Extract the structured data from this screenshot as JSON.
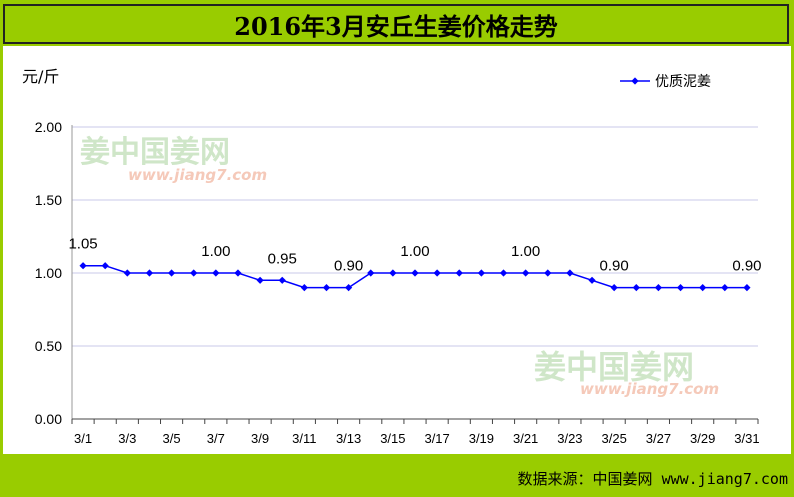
{
  "title": "2016年3月安丘生姜价格走势",
  "footer": "数据来源：中国姜网 www.jiang7.com",
  "watermark": {
    "logo": "姜中国姜网",
    "url": "www.jiang7.com"
  },
  "chart_data": {
    "type": "line",
    "ylabel": "元/斤",
    "ylim": [
      0,
      2
    ],
    "yticks": [
      "0.00",
      "0.50",
      "1.00",
      "1.50",
      "2.00"
    ],
    "ytick_values": [
      0,
      0.5,
      1.0,
      1.5,
      2.0
    ],
    "grid": true,
    "legend_position": "top-right",
    "x": [
      "3/1",
      "3/2",
      "3/3",
      "3/4",
      "3/5",
      "3/6",
      "3/7",
      "3/8",
      "3/9",
      "3/10",
      "3/11",
      "3/12",
      "3/13",
      "3/14",
      "3/15",
      "3/16",
      "3/17",
      "3/18",
      "3/19",
      "3/20",
      "3/21",
      "3/22",
      "3/23",
      "3/24",
      "3/25",
      "3/26",
      "3/27",
      "3/28",
      "3/29",
      "3/30",
      "3/31"
    ],
    "xtick_labels": [
      "3/1",
      "3/3",
      "3/5",
      "3/7",
      "3/9",
      "3/11",
      "3/13",
      "3/15",
      "3/17",
      "3/19",
      "3/21",
      "3/23",
      "3/25",
      "3/27",
      "3/29",
      "3/31"
    ],
    "series": [
      {
        "name": "优质泥姜",
        "color": "#0000ff",
        "values": [
          1.05,
          1.05,
          1.0,
          1.0,
          1.0,
          1.0,
          1.0,
          1.0,
          0.95,
          0.95,
          0.9,
          0.9,
          0.9,
          1.0,
          1.0,
          1.0,
          1.0,
          1.0,
          1.0,
          1.0,
          1.0,
          1.0,
          1.0,
          0.95,
          0.9,
          0.9,
          0.9,
          0.9,
          0.9,
          0.9,
          0.9
        ]
      }
    ],
    "data_labels": [
      {
        "index": 0,
        "text": "1.05"
      },
      {
        "index": 6,
        "text": "1.00"
      },
      {
        "index": 9,
        "text": "0.95"
      },
      {
        "index": 12,
        "text": "0.90"
      },
      {
        "index": 15,
        "text": "1.00"
      },
      {
        "index": 20,
        "text": "1.00"
      },
      {
        "index": 24,
        "text": "0.90"
      },
      {
        "index": 30,
        "text": "0.90"
      }
    ]
  }
}
